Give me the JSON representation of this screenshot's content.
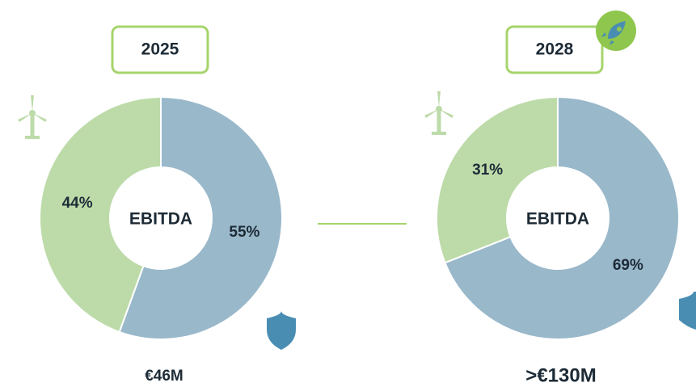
{
  "chart_data": [
    {
      "type": "pie",
      "year": "2025",
      "center_label": "EBITDA",
      "total": "€46M",
      "values": [
        55,
        44
      ],
      "value_labels": [
        "55%",
        "44%"
      ],
      "colors": [
        "#99b8ca",
        "#bddba9"
      ]
    },
    {
      "type": "pie",
      "year": "2028",
      "center_label": "EBITDA",
      "total": ">€130M",
      "values": [
        69,
        31
      ],
      "value_labels": [
        "69%",
        "31%"
      ],
      "colors": [
        "#99b8ca",
        "#bddba9"
      ]
    }
  ]
}
